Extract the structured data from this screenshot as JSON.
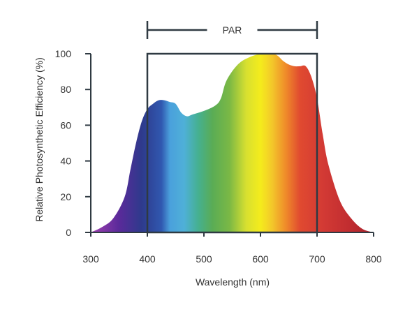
{
  "chart_data": {
    "type": "area",
    "xlabel": "Wavelength (nm)",
    "ylabel": "Relative Photosynthetic Efficiency (%)",
    "xlim": [
      300,
      800
    ],
    "ylim": [
      0,
      100
    ],
    "xticks": [
      "300",
      "400",
      "500",
      "600",
      "700",
      "800"
    ],
    "yticks": [
      "0",
      "20",
      "40",
      "60",
      "80",
      "100"
    ],
    "series": [
      {
        "x": [
          300,
          320,
          340,
          360,
          370,
          380,
          390,
          400,
          410,
          420,
          430,
          440,
          450,
          460,
          470,
          480,
          500,
          520,
          530,
          540,
          560,
          580,
          600,
          610,
          620,
          630,
          640,
          650,
          660,
          670,
          680,
          690,
          700,
          710,
          720,
          740,
          760,
          780,
          800
        ],
        "y": [
          0,
          3,
          8,
          20,
          35,
          50,
          62,
          69,
          72,
          74,
          74,
          73,
          72,
          67,
          65,
          66,
          68,
          71,
          75,
          85,
          94,
          98,
          100,
          100,
          100,
          99,
          96,
          94,
          93,
          93,
          93,
          87,
          75,
          55,
          38,
          18,
          8,
          2,
          0
        ]
      }
    ],
    "annotation": {
      "label": "PAR",
      "x_range": [
        400,
        700
      ],
      "y_top": 100
    }
  }
}
